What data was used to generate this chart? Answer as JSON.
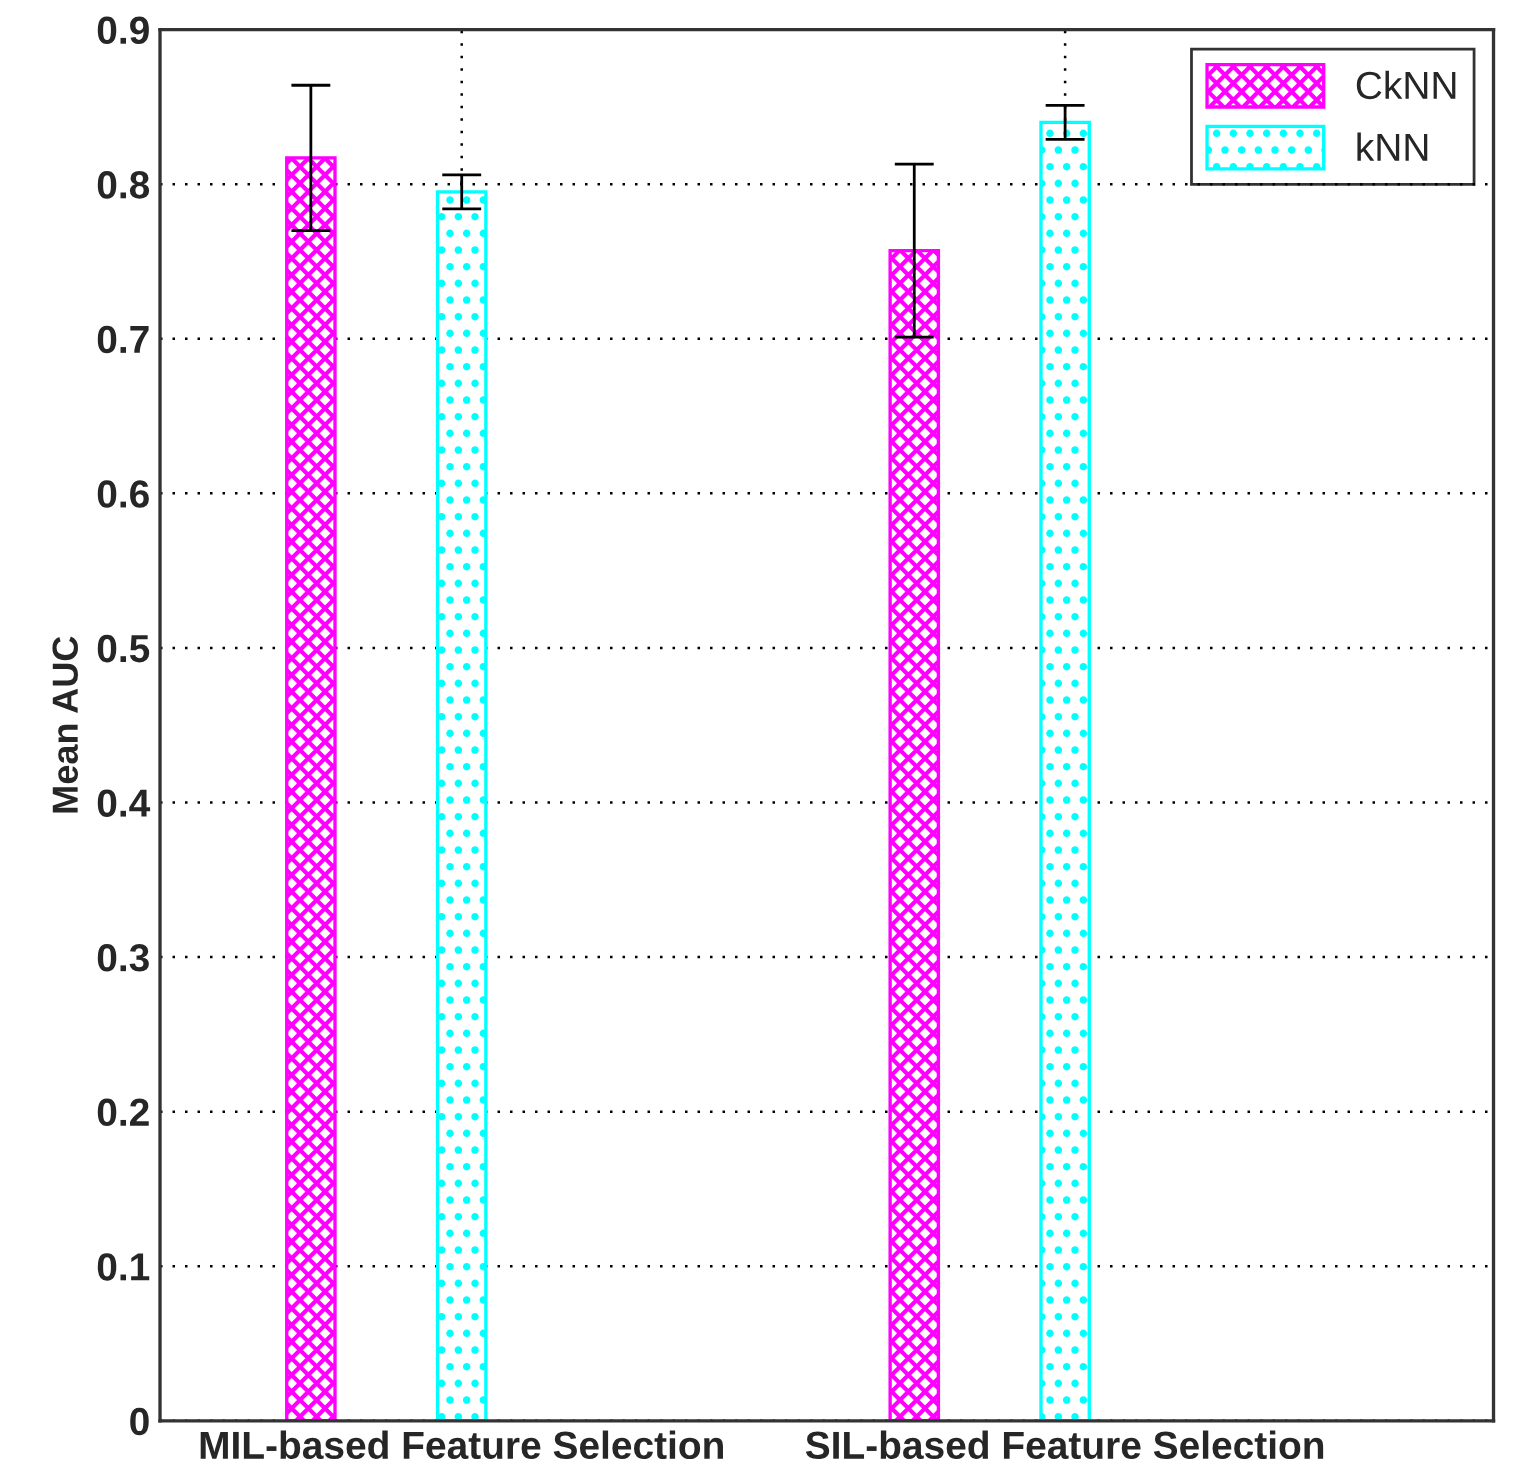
{
  "chart_data": {
    "type": "bar",
    "ylabel": "Mean AUC",
    "categories": [
      "MIL-based Feature Selection",
      "SIL-based Feature Selection"
    ],
    "series": [
      {
        "name": "CkNN",
        "color": "#ff00ff",
        "values": [
          0.817,
          0.757
        ],
        "errors": [
          0.047,
          0.056
        ]
      },
      {
        "name": "kNN",
        "color": "#00ffff",
        "values": [
          0.795,
          0.84
        ],
        "errors": [
          0.011,
          0.011
        ]
      }
    ],
    "ylim": [
      0,
      0.9
    ],
    "yticks": [
      0,
      0.1,
      0.2,
      0.3,
      0.4,
      0.5,
      0.6,
      0.7,
      0.8,
      0.9
    ],
    "grid": true,
    "legend": "top right"
  }
}
